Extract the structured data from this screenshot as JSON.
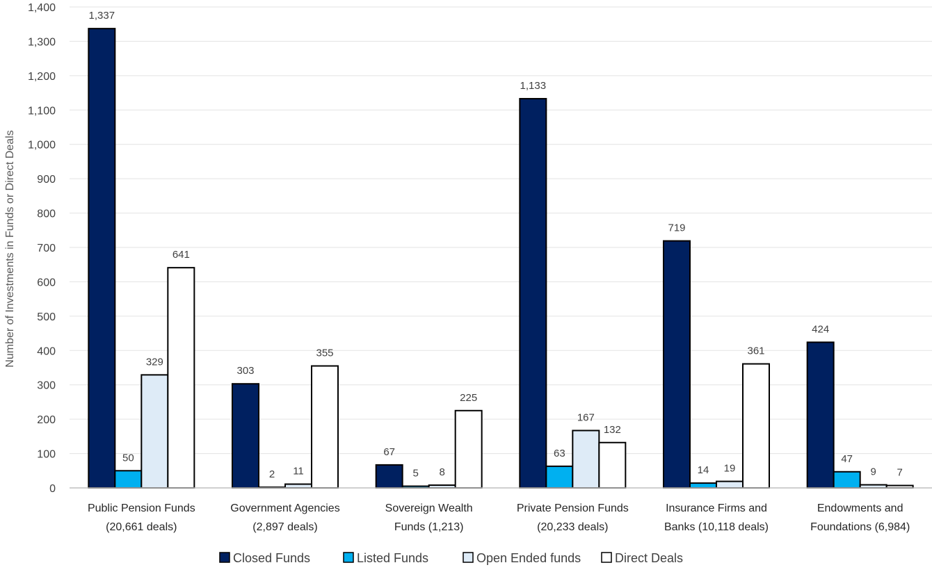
{
  "chart_data": {
    "type": "bar",
    "title": "",
    "xlabel": "",
    "ylabel": "Number of Investments in Funds or Direct Deals",
    "ylim": [
      0,
      1400
    ],
    "ytick_step": 100,
    "grid": true,
    "legend_position": "bottom",
    "categories": [
      [
        "Public Pension Funds",
        "(20,661 deals)"
      ],
      [
        "Government Agencies",
        "(2,897 deals)"
      ],
      [
        "Sovereign Wealth",
        "Funds (1,213)"
      ],
      [
        "Private Pension Funds",
        "(20,233 deals)"
      ],
      [
        "Insurance Firms and",
        "Banks (10,118 deals)"
      ],
      [
        "Endowments and",
        "Foundations (6,984)"
      ]
    ],
    "series": [
      {
        "name": "Closed Funds",
        "color": "#002060",
        "values": [
          1337,
          303,
          67,
          1133,
          719,
          424
        ]
      },
      {
        "name": "Listed Funds",
        "color": "#00B0F0",
        "values": [
          50,
          2,
          5,
          63,
          14,
          47
        ]
      },
      {
        "name": "Open Ended funds",
        "color": "#DEEBF7",
        "values": [
          329,
          11,
          8,
          167,
          19,
          9
        ]
      },
      {
        "name": "Direct Deals",
        "color": "#FFFFFF",
        "values": [
          641,
          355,
          225,
          132,
          361,
          7
        ]
      }
    ]
  }
}
